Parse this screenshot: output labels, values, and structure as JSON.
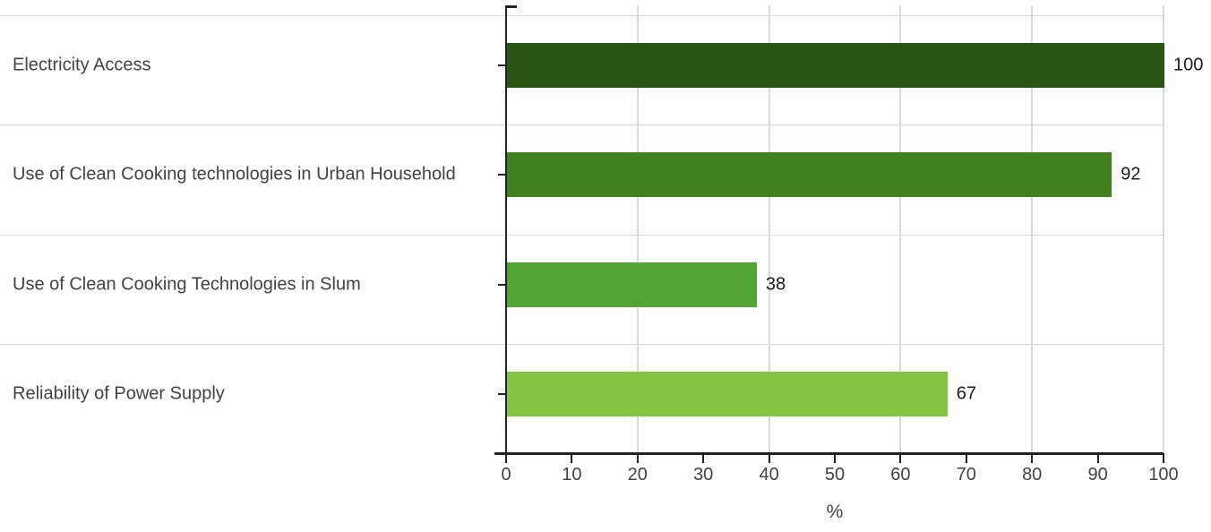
{
  "chart_data": {
    "type": "bar",
    "orientation": "horizontal",
    "title": "",
    "xlabel": "%",
    "ylabel": "",
    "xlim": [
      0,
      100
    ],
    "x_ticks": [
      0,
      10,
      20,
      30,
      40,
      50,
      60,
      70,
      80,
      90,
      100
    ],
    "x_gridline_step": 20,
    "grid": "on",
    "legend_position": "none",
    "categories": [
      "Electricity Access",
      "Use of Clean Cooking technologies in Urban Household",
      "Use of Clean Cooking Technologies in Slum",
      "Reliability of Power Supply"
    ],
    "values": [
      100,
      92,
      38,
      67
    ],
    "value_labels": [
      "100",
      "92",
      "38",
      "67"
    ],
    "bar_colors": [
      "#2a5414",
      "#41801f",
      "#52a533",
      "#83c441"
    ],
    "colors": {
      "axis": "#222222",
      "gridline": "#d9d9d9",
      "category_text": "#424242",
      "tick_text": "#424242",
      "value_text": "#1a1a1a",
      "background": "#ffffff"
    }
  }
}
